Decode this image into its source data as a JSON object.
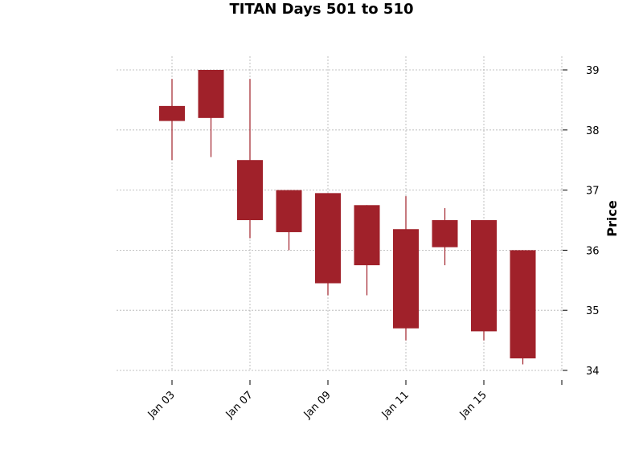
{
  "chart_data": {
    "type": "candlestick",
    "title": "TITAN Days 501 to 510",
    "ylabel": "Price",
    "xlabel": "",
    "ylim": [
      33.9,
      39.2
    ],
    "yticks": [
      34,
      35,
      36,
      37,
      38,
      39
    ],
    "grid": true,
    "colors": {
      "down": "#a0212a",
      "grid": "#b0b0b0"
    },
    "xticks": [
      {
        "label": "Jan 03",
        "index": 0
      },
      {
        "label": "Jan 07",
        "index": 2
      },
      {
        "label": "Jan 09",
        "index": 4
      },
      {
        "label": "Jan 11",
        "index": 6
      },
      {
        "label": "Jan 15",
        "index": 8
      },
      {
        "label": "",
        "index": 10
      }
    ],
    "candles": [
      {
        "open": 38.4,
        "high": 38.85,
        "low": 37.5,
        "close": 38.15
      },
      {
        "open": 39.0,
        "high": 39.0,
        "low": 37.55,
        "close": 38.2
      },
      {
        "open": 37.5,
        "high": 38.85,
        "low": 36.2,
        "close": 36.5
      },
      {
        "open": 37.0,
        "high": 37.0,
        "low": 36.0,
        "close": 36.3
      },
      {
        "open": 36.95,
        "high": 36.95,
        "low": 35.25,
        "close": 35.45
      },
      {
        "open": 36.75,
        "high": 36.75,
        "low": 35.25,
        "close": 35.75
      },
      {
        "open": 36.35,
        "high": 36.9,
        "low": 34.5,
        "close": 34.7
      },
      {
        "open": 36.5,
        "high": 36.7,
        "low": 35.75,
        "close": 36.05
      },
      {
        "open": 36.5,
        "high": 36.5,
        "low": 34.5,
        "close": 34.65
      },
      {
        "open": 36.0,
        "high": 36.0,
        "low": 34.1,
        "close": 34.2
      }
    ]
  }
}
